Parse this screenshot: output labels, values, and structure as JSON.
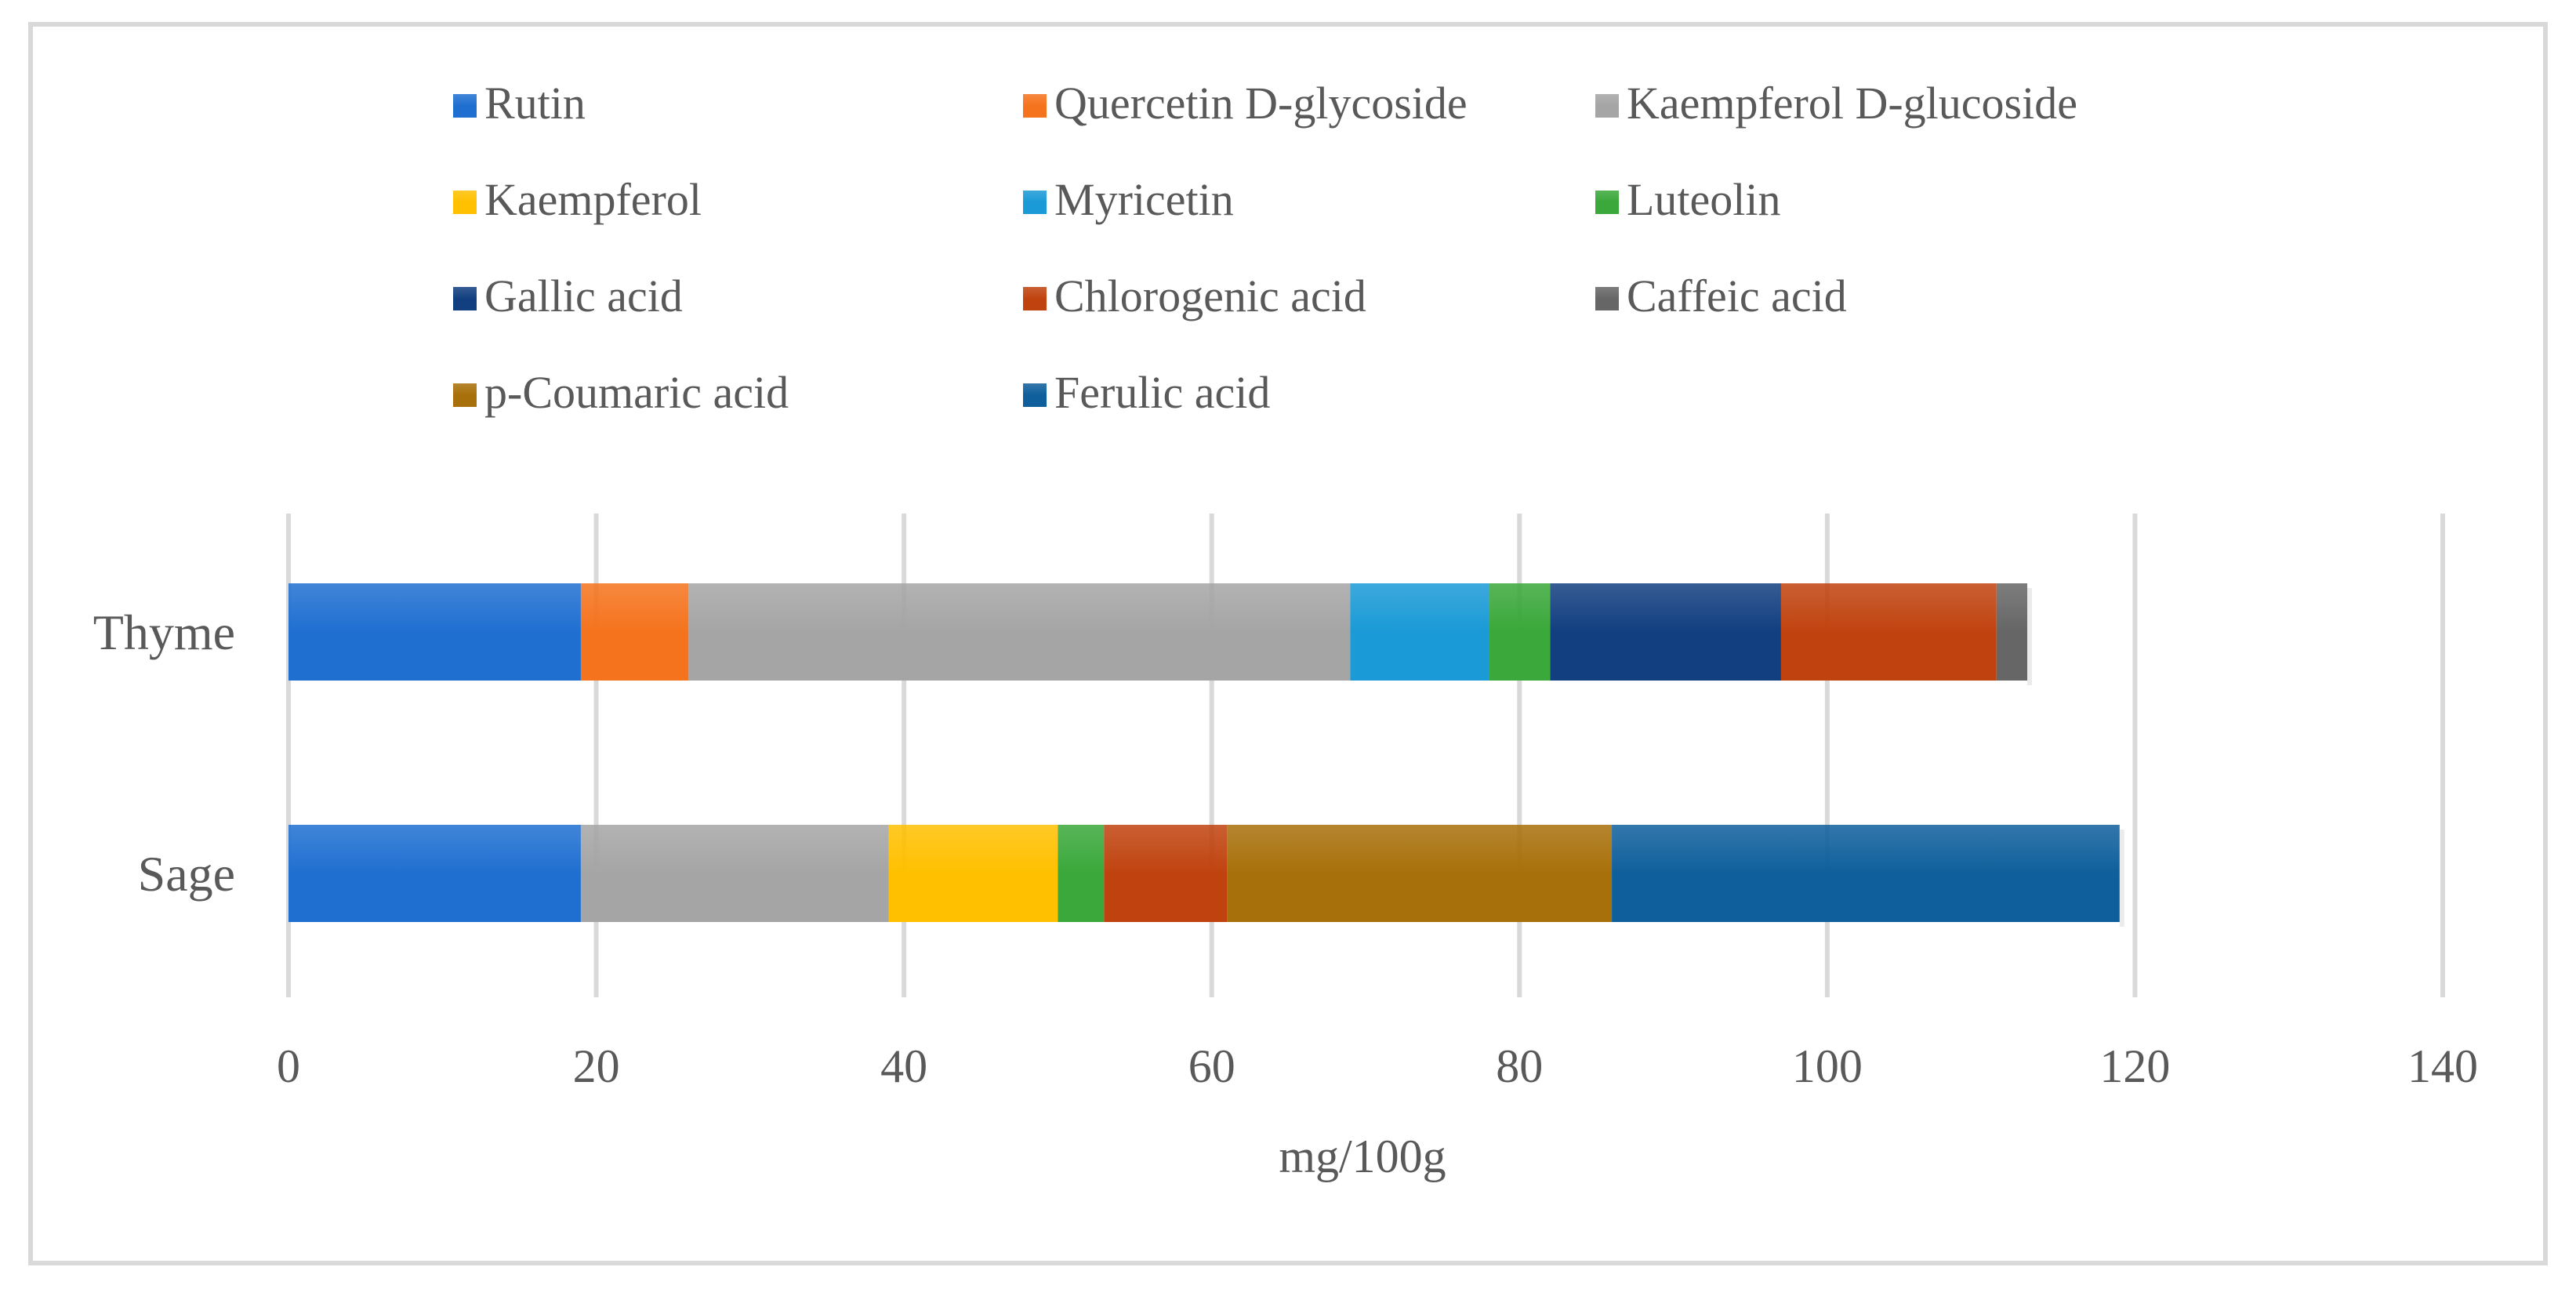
{
  "chart_data": {
    "type": "bar",
    "orientation": "horizontal",
    "stacked": true,
    "title": "",
    "xlabel": "mg/100g",
    "ylabel": "",
    "xlim": [
      0,
      140
    ],
    "x_ticks": [
      "0",
      "20",
      "40",
      "60",
      "80",
      "100",
      "120",
      "140"
    ],
    "categories": [
      "Thyme",
      "Sage"
    ],
    "grid": true,
    "legend_position": "top",
    "series": [
      {
        "name": "Rutin",
        "color": "#1f6fd1",
        "values": [
          19,
          19
        ]
      },
      {
        "name": "Quercetin D-glycoside",
        "color": "#f5731d",
        "values": [
          7,
          0
        ]
      },
      {
        "name": "Kaempferol D-glucoside",
        "color": "#a5a5a5",
        "values": [
          43,
          20
        ]
      },
      {
        "name": "Kaempferol",
        "color": "#ffc000",
        "values": [
          0,
          11
        ]
      },
      {
        "name": "Myricetin",
        "color": "#1a9ad6",
        "values": [
          9,
          0
        ]
      },
      {
        "name": "Luteolin",
        "color": "#3aa83a",
        "values": [
          4,
          3
        ]
      },
      {
        "name": "Gallic acid",
        "color": "#123f80",
        "values": [
          15,
          0
        ]
      },
      {
        "name": "Chlorogenic acid",
        "color": "#c0430f",
        "values": [
          14,
          8
        ]
      },
      {
        "name": "Caffeic acid",
        "color": "#666666",
        "values": [
          2,
          0
        ]
      },
      {
        "name": "p-Coumaric acid",
        "color": "#a8700a",
        "values": [
          0,
          25
        ]
      },
      {
        "name": "Ferulic acid",
        "color": "#0f5f9c",
        "values": [
          0,
          33
        ]
      }
    ]
  }
}
